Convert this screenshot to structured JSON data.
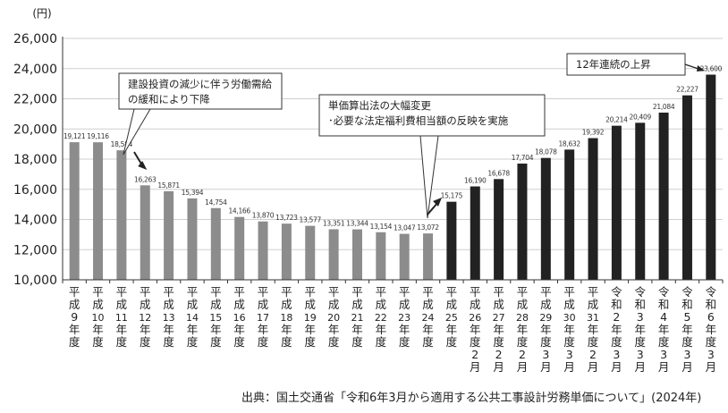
{
  "chart_data": {
    "type": "bar",
    "y_unit": "(円)",
    "ylim": [
      10000,
      26000
    ],
    "y_ticks": [
      "10,000",
      "12,000",
      "14,000",
      "16,000",
      "18,000",
      "20,000",
      "22,000",
      "24,000",
      "26,000"
    ],
    "categories": [
      "平成9年度",
      "平成10年度",
      "平成11年度",
      "平成12年度",
      "平成13年度",
      "平成14年度",
      "平成15年度",
      "平成16年度",
      "平成17年度",
      "平成18年度",
      "平成19年度",
      "平成20年度",
      "平成21年度",
      "平成22年度",
      "平成23年度",
      "平成24年度",
      "平成25年度",
      "平成26年度2月",
      "平成27年度2月",
      "平成28年度2月",
      "平成29年度3月",
      "平成30年度3月",
      "平成31年度2月",
      "令和2年度3月",
      "令和3年度3月",
      "令和4年度3月",
      "令和5年度3月",
      "令和6年度3月"
    ],
    "values": [
      19121,
      19116,
      18584,
      16263,
      15871,
      15394,
      14754,
      14166,
      13870,
      13723,
      13577,
      13351,
      13344,
      13154,
      13047,
      13072,
      15175,
      16190,
      16678,
      17704,
      18078,
      18632,
      19392,
      20214,
      20409,
      21084,
      22227,
      23600
    ],
    "value_labels": [
      "19,121",
      "19,116",
      "18,584",
      "16,263",
      "15,871",
      "15,394",
      "14,754",
      "14,166",
      "13,870",
      "13,723",
      "13,577",
      "13,351",
      "13,344",
      "13,154",
      "13,047",
      "13,072",
      "15,175",
      "16,190",
      "16,678",
      "17,704",
      "18,078",
      "18,632",
      "19,392",
      "20,214",
      "20,409",
      "21,084",
      "22,227",
      "23,600"
    ],
    "colors": {
      "early": "#8c8c8c",
      "late": "#222222",
      "axis": "#333333",
      "grid": "#cfcfcf"
    },
    "grid": true,
    "annotations": [
      {
        "lines": [
          "建設投資の減少に伴う労働需給",
          "の緩和により下降"
        ]
      },
      {
        "lines": [
          "単価算出法の大幅変更",
          "･必要な法定福利費相当額の反映を実施"
        ]
      },
      {
        "lines": [
          "12年連続の上昇"
        ]
      }
    ]
  },
  "source": "出典：国土交通省「令和6年3月から適用する公共工事設計労務単価について」(2024年)"
}
